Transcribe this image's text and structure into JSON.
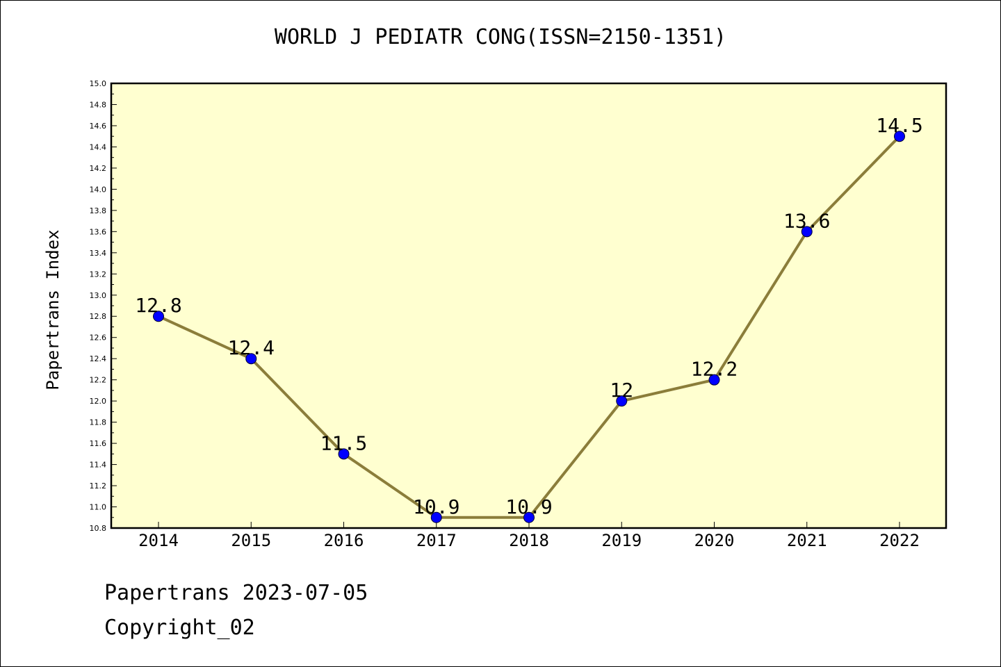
{
  "chart_data": {
    "type": "line",
    "title": "WORLD J PEDIATR CONG(ISSN=2150-1351)",
    "ylabel": "Papertrans Index",
    "xlabel": "",
    "categories": [
      "2014",
      "2015",
      "2016",
      "2017",
      "2018",
      "2019",
      "2020",
      "2021",
      "2022"
    ],
    "series": [
      {
        "values": [
          12.8,
          12.4,
          11.5,
          10.9,
          10.9,
          12.0,
          12.2,
          13.6,
          14.5
        ],
        "data_labels": [
          "12.8",
          "12.4",
          "11.5",
          "10.9",
          "10.9",
          "12",
          "12.2",
          "13.6",
          "14.5"
        ]
      }
    ],
    "ylim": [
      10.8,
      15.0
    ],
    "y_ticks": [
      "10.8",
      "11.0",
      "11.2",
      "11.4",
      "11.6",
      "11.8",
      "12.0",
      "12.2",
      "12.4",
      "12.6",
      "12.8",
      "13.0",
      "13.2",
      "13.4",
      "13.6",
      "13.8",
      "14.0",
      "14.2",
      "14.4",
      "14.6",
      "14.8",
      "15.0"
    ],
    "grid": false,
    "colors": {
      "plot_background": "#ffffd0",
      "line": "#8b7d3a",
      "marker": "#0000ff",
      "axis": "#000000"
    }
  },
  "footer": {
    "date_text": "Papertrans 2023-07-05",
    "copyright_text": "Copyright_02"
  }
}
